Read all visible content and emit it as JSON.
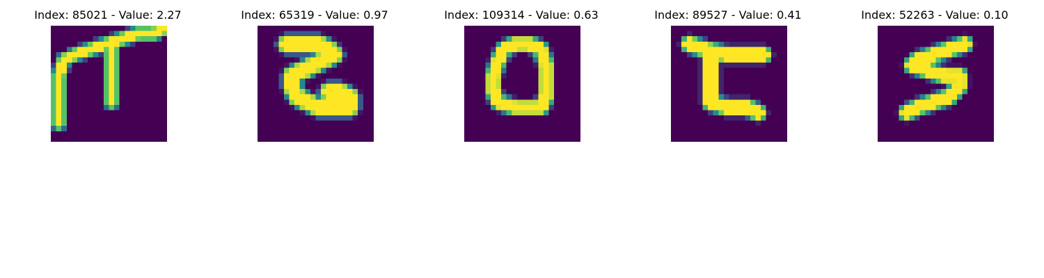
{
  "figure": {
    "background": "#ffffff",
    "colormap": "viridis",
    "colors": {
      "background_cell": "#440154",
      "low": "#3b528b",
      "mid": "#21918c",
      "high": "#5ec962",
      "peak": "#fde725"
    },
    "panels": [
      {
        "title": "Index: 85021 - Value: 2.27",
        "index": 85021,
        "value": 2.27,
        "glyph_description": "handwritten character resembling a pi / T shape",
        "strokes": [
          [
            [
              1,
              18
            ],
            [
              1,
              14
            ],
            [
              1,
              9
            ],
            [
              2,
              6
            ],
            [
              4,
              5
            ],
            [
              7,
              4
            ],
            [
              10,
              3
            ],
            [
              13,
              2
            ],
            [
              16,
              1
            ],
            [
              19,
              1
            ],
            [
              21,
              0
            ]
          ],
          [
            [
              11,
              4
            ],
            [
              11,
              7
            ],
            [
              11,
              10
            ],
            [
              11,
              14
            ]
          ]
        ],
        "stroke_width": 1.15
      },
      {
        "title": "Index: 65319 - Value: 0.97",
        "index": 65319,
        "value": 0.97,
        "glyph_description": "handwritten character resembling a Z",
        "strokes": [
          [
            [
              5,
              3
            ],
            [
              8,
              3
            ],
            [
              11,
              3
            ],
            [
              13,
              4
            ],
            [
              14,
              5
            ],
            [
              12,
              6
            ],
            [
              10,
              7
            ],
            [
              8,
              8
            ],
            [
              6,
              9
            ],
            [
              6,
              11
            ],
            [
              7,
              13
            ],
            [
              9,
              14
            ],
            [
              11,
              15
            ],
            [
              14,
              15
            ],
            [
              17,
              15
            ],
            [
              17,
              13
            ],
            [
              15,
              12
            ],
            [
              13,
              12
            ]
          ]
        ],
        "stroke_width": 2.0
      },
      {
        "title": "Index: 109314 - Value: 0.63",
        "index": 109314,
        "value": 0.63,
        "glyph_description": "handwritten character resembling a 0 / O",
        "strokes": [
          [
            [
              12,
              3
            ],
            [
              9,
              3
            ],
            [
              7,
              4
            ],
            [
              6,
              6
            ],
            [
              5,
              9
            ],
            [
              5,
              12
            ],
            [
              6,
              14
            ],
            [
              9,
              15
            ],
            [
              12,
              15
            ],
            [
              14,
              15
            ],
            [
              15,
              13
            ],
            [
              15,
              10
            ],
            [
              15,
              7
            ],
            [
              14,
              4
            ],
            [
              12,
              3
            ]
          ]
        ],
        "stroke_width": 1.5
      },
      {
        "title": "Index: 89527 - Value: 0.41",
        "index": 89527,
        "value": 0.41,
        "glyph_description": "handwritten character resembling a C with a bar",
        "strokes": [
          [
            [
              3,
              3
            ],
            [
              6,
              4
            ],
            [
              10,
              5
            ],
            [
              14,
              5
            ],
            [
              17,
              5
            ]
          ],
          [
            [
              7,
              5
            ],
            [
              7,
              8
            ],
            [
              7,
              11
            ],
            [
              7,
              14
            ],
            [
              10,
              15
            ],
            [
              14,
              15
            ],
            [
              16,
              16
            ]
          ]
        ],
        "stroke_width": 1.7
      },
      {
        "title": "Index: 52263 - Value: 0.10",
        "index": 52263,
        "value": 0.1,
        "glyph_description": "handwritten character resembling a 5 / S",
        "strokes": [
          [
            [
              16,
              3
            ],
            [
              13,
              4
            ],
            [
              10,
              5
            ],
            [
              7,
              6
            ],
            [
              6,
              7
            ],
            [
              9,
              8
            ],
            [
              12,
              9
            ],
            [
              15,
              9
            ],
            [
              15,
              11
            ],
            [
              13,
              13
            ],
            [
              10,
              14
            ],
            [
              7,
              15
            ],
            [
              5,
              16
            ]
          ]
        ],
        "stroke_width": 1.6
      }
    ]
  }
}
